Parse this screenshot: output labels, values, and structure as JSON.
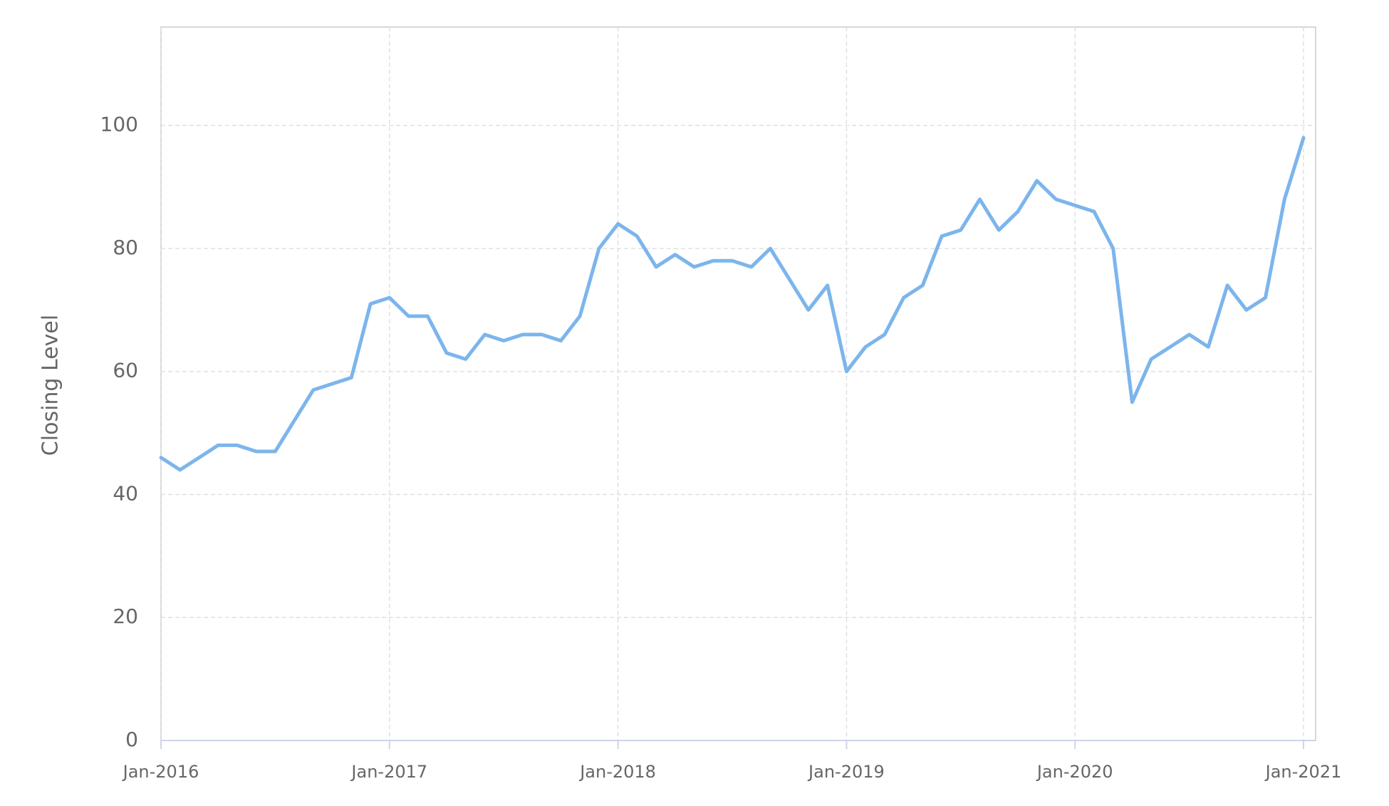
{
  "chart_data": {
    "type": "line",
    "y_label": "Closing Level",
    "x": [
      "2016-01",
      "2016-02",
      "2016-03",
      "2016-04",
      "2016-05",
      "2016-06",
      "2016-07",
      "2016-08",
      "2016-09",
      "2016-10",
      "2016-11",
      "2016-12",
      "2017-01",
      "2017-02",
      "2017-03",
      "2017-04",
      "2017-05",
      "2017-06",
      "2017-07",
      "2017-08",
      "2017-09",
      "2017-10",
      "2017-11",
      "2017-12",
      "2018-01",
      "2018-02",
      "2018-03",
      "2018-04",
      "2018-05",
      "2018-06",
      "2018-07",
      "2018-08",
      "2018-09",
      "2018-10",
      "2018-11",
      "2018-12",
      "2019-01",
      "2019-02",
      "2019-03",
      "2019-04",
      "2019-05",
      "2019-06",
      "2019-07",
      "2019-08",
      "2019-09",
      "2019-10",
      "2019-11",
      "2019-12",
      "2020-01",
      "2020-02",
      "2020-03",
      "2020-04",
      "2020-05",
      "2020-06",
      "2020-07",
      "2020-08",
      "2020-09",
      "2020-10",
      "2020-11",
      "2020-12",
      "2021-01"
    ],
    "series": [
      {
        "color": "#7cb5ec",
        "values": [
          46,
          44,
          46,
          48,
          48,
          47,
          47,
          52,
          57,
          58,
          59,
          71,
          72,
          69,
          69,
          63,
          62,
          66,
          65,
          66,
          66,
          65,
          69,
          80,
          84,
          82,
          77,
          79,
          77,
          78,
          78,
          77,
          80,
          75,
          70,
          74,
          60,
          64,
          66,
          72,
          74,
          82,
          83,
          88,
          83,
          86,
          91,
          88,
          87,
          86,
          80,
          55,
          62,
          64,
          66,
          64,
          74,
          70,
          72,
          88,
          98
        ]
      }
    ],
    "xlim": [
      "2016-01",
      "2021-01"
    ],
    "xticks": [
      {
        "value": "2016-01",
        "label": "Jan-2016"
      },
      {
        "value": "2017-01",
        "label": "Jan-2017"
      },
      {
        "value": "2018-01",
        "label": "Jan-2018"
      },
      {
        "value": "2019-01",
        "label": "Jan-2019"
      },
      {
        "value": "2020-01",
        "label": "Jan-2020"
      },
      {
        "value": "2021-01",
        "label": "Jan-2021"
      }
    ],
    "ylim": [
      0,
      116
    ],
    "yticks": [
      0,
      20,
      40,
      60,
      80,
      100
    ],
    "grid": true
  }
}
